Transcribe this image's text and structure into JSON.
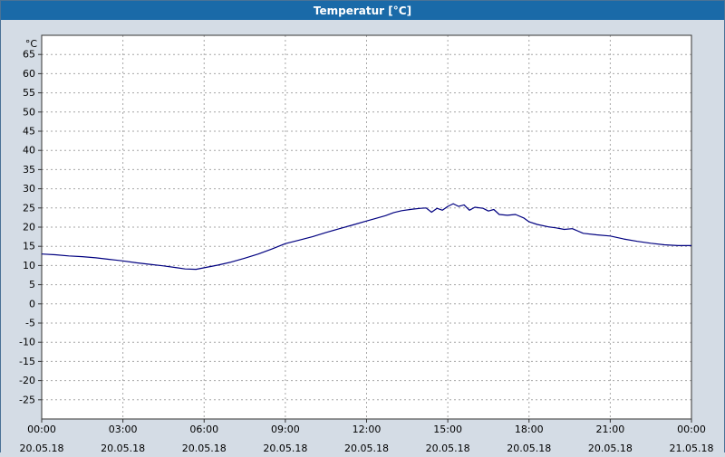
{
  "window": {
    "title": "Temperatur [°C]"
  },
  "chart_data": {
    "type": "line",
    "title": "Temperatur [°C]",
    "xlabel": "",
    "ylabel": "°C",
    "xlim": [
      0,
      24
    ],
    "ylim": [
      -30,
      70
    ],
    "grid": "dashed",
    "legend": "none",
    "y_ticks": [
      65,
      60,
      55,
      50,
      45,
      40,
      35,
      30,
      25,
      20,
      15,
      10,
      5,
      0,
      -5,
      -10,
      -15,
      -20,
      -25
    ],
    "x_ticks": [
      {
        "hour": 0,
        "time": "00:00",
        "date": "20.05.18"
      },
      {
        "hour": 3,
        "time": "03:00",
        "date": "20.05.18"
      },
      {
        "hour": 6,
        "time": "06:00",
        "date": "20.05.18"
      },
      {
        "hour": 9,
        "time": "09:00",
        "date": "20.05.18"
      },
      {
        "hour": 12,
        "time": "12:00",
        "date": "20.05.18"
      },
      {
        "hour": 15,
        "time": "15:00",
        "date": "20.05.18"
      },
      {
        "hour": 18,
        "time": "18:00",
        "date": "20.05.18"
      },
      {
        "hour": 21,
        "time": "21:00",
        "date": "20.05.18"
      },
      {
        "hour": 24,
        "time": "00:00",
        "date": "21.05.18"
      }
    ],
    "colors": {
      "title_bar_bg": "#1a6aa8",
      "panel_bg": "#d4dce5",
      "plot_bg": "#ffffff",
      "plot_border": "#333333",
      "gridline": "#a6a6a6",
      "line": "#000080",
      "text": "#000000"
    },
    "series": [
      {
        "name": "Temperatur",
        "unit": "°C",
        "points": [
          [
            0,
            13
          ],
          [
            0.5,
            12.8
          ],
          [
            1,
            12.5
          ],
          [
            1.5,
            12.3
          ],
          [
            2,
            12
          ],
          [
            2.5,
            11.6
          ],
          [
            3,
            11.2
          ],
          [
            3.5,
            10.7
          ],
          [
            4,
            10.3
          ],
          [
            4.5,
            9.9
          ],
          [
            5,
            9.4
          ],
          [
            5.3,
            9.1
          ],
          [
            5.7,
            9
          ],
          [
            6,
            9.4
          ],
          [
            6.5,
            10.1
          ],
          [
            7,
            10.9
          ],
          [
            7.5,
            11.9
          ],
          [
            8,
            13
          ],
          [
            8.5,
            14.3
          ],
          [
            9,
            15.7
          ],
          [
            9.5,
            16.6
          ],
          [
            10,
            17.5
          ],
          [
            10.5,
            18.6
          ],
          [
            11,
            19.6
          ],
          [
            11.5,
            20.6
          ],
          [
            12,
            21.6
          ],
          [
            12.3,
            22.2
          ],
          [
            12.7,
            23
          ],
          [
            13,
            23.8
          ],
          [
            13.3,
            24.3
          ],
          [
            13.7,
            24.7
          ],
          [
            14,
            24.9
          ],
          [
            14.2,
            25
          ],
          [
            14.4,
            23.9
          ],
          [
            14.6,
            24.9
          ],
          [
            14.8,
            24.4
          ],
          [
            15,
            25.4
          ],
          [
            15.2,
            26.1
          ],
          [
            15.4,
            25.4
          ],
          [
            15.6,
            25.8
          ],
          [
            15.8,
            24.4
          ],
          [
            16,
            25.2
          ],
          [
            16.3,
            24.9
          ],
          [
            16.5,
            24.2
          ],
          [
            16.7,
            24.6
          ],
          [
            16.9,
            23.3
          ],
          [
            17.2,
            23.1
          ],
          [
            17.5,
            23.3
          ],
          [
            17.8,
            22.4
          ],
          [
            18,
            21.4
          ],
          [
            18.3,
            20.7
          ],
          [
            18.7,
            20.1
          ],
          [
            19,
            19.8
          ],
          [
            19.3,
            19.4
          ],
          [
            19.6,
            19.6
          ],
          [
            20,
            18.4
          ],
          [
            20.5,
            18
          ],
          [
            21,
            17.7
          ],
          [
            21.5,
            16.9
          ],
          [
            22,
            16.3
          ],
          [
            22.5,
            15.8
          ],
          [
            23,
            15.4
          ],
          [
            23.5,
            15.2
          ],
          [
            24,
            15.2
          ]
        ]
      }
    ]
  }
}
